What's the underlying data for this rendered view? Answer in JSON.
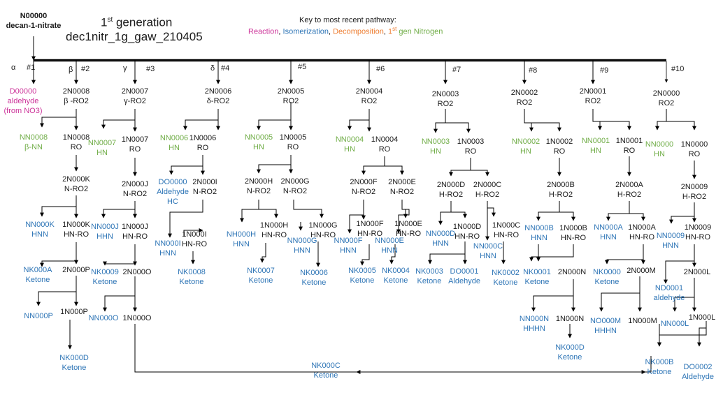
{
  "root": {
    "code": "N00000",
    "name": "decan-1-nitrate"
  },
  "title": {
    "prefix": "1",
    "sup": "st",
    "line1_rest": " generation",
    "line2": "dec1nitr_1g_gaw_210405"
  },
  "key": {
    "heading": "Key to most recent pathway:",
    "reaction": "Reaction",
    "isomerization": "Isomerization",
    "decomposition": "Decomposition",
    "nitrogen_prefix": "1",
    "nitrogen_sup": "st",
    "nitrogen_rest": " gen Nitrogen",
    "sep": ", ",
    "colors": {
      "reaction": "#cc3399",
      "isomerization": "#2e75b6",
      "decomposition": "#ed7d31",
      "nitrogen": "#70ad47"
    }
  },
  "positions": {
    "alpha": "α",
    "beta": "β",
    "gamma": "γ",
    "delta": "δ",
    "n1": "#1",
    "n2": "#2",
    "n3": "#3",
    "n4": "#4",
    "n5": "#5",
    "n6": "#6",
    "n7": "#7",
    "n8": "#8",
    "n9": "#9",
    "n10": "#10"
  },
  "c1": {
    "l1": "D00000",
    "l2": "aldehyde",
    "l3": "(from NO3)"
  },
  "c2": {
    "ro2": [
      "2N0008",
      "β -RO2"
    ],
    "nn": [
      "NN0008",
      "β-NN"
    ],
    "ro": [
      "1N0008",
      "RO"
    ],
    "nro2": [
      "2N000K",
      "N-RO2"
    ],
    "hnn": [
      "NN000K",
      "HNN"
    ],
    "hnro": [
      "1N000K",
      "HN-RO"
    ],
    "ket": [
      "NK000A",
      "Ketone"
    ],
    "p2": "2N000P",
    "nnp": "NN000P",
    "p1": "1N000P",
    "ket2": [
      "NK000D",
      "Ketone"
    ]
  },
  "c3": {
    "ro2": [
      "2N0007",
      "γ-RO2"
    ],
    "nn": [
      "NN0007",
      "HN"
    ],
    "ro": [
      "1N0007",
      "RO"
    ],
    "nro2": [
      "2N000J",
      "N-RO2"
    ],
    "hnn": [
      "NN000J",
      "HHN"
    ],
    "hnro": [
      "1N000J",
      "HN-RO"
    ],
    "ket": [
      "NK0009",
      "Ketone"
    ],
    "o2": "2N000O",
    "nno": "NN000O",
    "o1": "1N000O"
  },
  "c4": {
    "ro2": [
      "2N0006",
      "δ-RO2"
    ],
    "nn": [
      "NN0006",
      "HN"
    ],
    "ro": [
      "1N0006",
      "RO"
    ],
    "ald": [
      "DO0000",
      "Aldehyde",
      "HC"
    ],
    "nro2": [
      "2N000I",
      "N-RO2"
    ],
    "hnn": [
      "NN000I",
      "HNN"
    ],
    "hnro": [
      "1N000I",
      "HN-RO"
    ],
    "ket": [
      "NK0008",
      "Ketone"
    ]
  },
  "c5": {
    "ro2": [
      "2N0005",
      "RO2"
    ],
    "nn": [
      "NN0005",
      "HN"
    ],
    "ro": [
      "1N0005",
      "RO"
    ],
    "h2": [
      "2N000H",
      "N-RO2"
    ],
    "g2": [
      "2N000G",
      "N-RO2"
    ],
    "hhnn": [
      "NH000H",
      "HNN"
    ],
    "h1": [
      "1N000H",
      "HN-RO"
    ],
    "ket7": [
      "NK0007",
      "Ketone"
    ],
    "ghnn": [
      "NN000G",
      "HNN"
    ],
    "g1": [
      "1N000G",
      "HN-RO"
    ],
    "ket6": [
      "NK0006",
      "Ketone"
    ]
  },
  "c6": {
    "ro2": [
      "2N0004",
      "RO2"
    ],
    "nn": [
      "NN0004",
      "HN"
    ],
    "ro": [
      "1N0004",
      "RO"
    ],
    "f2": [
      "2N000F",
      "N-RO2"
    ],
    "e2": [
      "2N000E",
      "N-RO2"
    ],
    "f1": [
      "1N000F",
      "HN-RO"
    ],
    "fnn": [
      "NN000F",
      "HNN"
    ],
    "e1": [
      "1N000E",
      "HN-RO"
    ],
    "enn": [
      "NN000E",
      "HNN"
    ],
    "ket5": [
      "NK0005",
      "Ketone"
    ],
    "ket4": [
      "NK0004",
      "Ketone"
    ]
  },
  "c7": {
    "ro2": [
      "2N0003",
      "RO2"
    ],
    "nn": [
      "NN0003",
      "HN"
    ],
    "ro": [
      "1N0003",
      "RO"
    ],
    "d2": [
      "2N000D",
      "H-RO2"
    ],
    "c2": [
      "2N000C",
      "H-RO2"
    ],
    "dnn": [
      "NN000D",
      "HNN"
    ],
    "d1": [
      "1N000D",
      "HN-RO"
    ],
    "c1": [
      "1N000C",
      "HN-RO"
    ],
    "cnn": [
      "NN000C",
      "HNN"
    ],
    "ket3": [
      "NK0003",
      "Ketone"
    ],
    "ald": [
      "DO0001",
      "Aldehyde"
    ],
    "ket2": [
      "NK0002",
      "Ketone"
    ]
  },
  "c8": {
    "ro2": [
      "2N0002",
      "RO2"
    ],
    "nn": [
      "NN0002",
      "HN"
    ],
    "ro": [
      "1N0002",
      "RO"
    ],
    "b2": [
      "2N000B",
      "H-RO2"
    ],
    "bnn": [
      "NN000B",
      "HNN"
    ],
    "b1": [
      "1N000B",
      "HN-RO"
    ],
    "ket1": [
      "NK0001",
      "Ketone"
    ],
    "n2": "2N000N",
    "nnn": [
      "NN000N",
      "HHHN"
    ],
    "n1": "1N000N",
    "ketd": [
      "NK000D",
      "Ketone"
    ]
  },
  "c9": {
    "ro2": [
      "2N0001",
      "RO2"
    ],
    "nn": [
      "NN0001",
      "HN"
    ],
    "ro": [
      "1N0001",
      "RO"
    ],
    "a2": [
      "2N000A",
      "H-RO2"
    ],
    "ann": [
      "NN000A",
      "HNN"
    ],
    "a1": [
      "1N000A",
      "HN-RO"
    ],
    "ket0": [
      "NK0000",
      "Ketone"
    ],
    "m2": "2N000M",
    "mnn": [
      "NO000M",
      "HHHN"
    ],
    "m1": "1N000M",
    "ketb": [
      "NK000B",
      "Ketone"
    ]
  },
  "c10": {
    "ro2": [
      "2N0000",
      "RO2"
    ],
    "nn": [
      "NN0000",
      "HN"
    ],
    "ro": [
      "1N0000",
      "RO"
    ],
    "n9": [
      "2N0009",
      "H-RO2"
    ],
    "nn9": [
      "NN0009",
      "HNN"
    ],
    "h9": [
      "1N0009",
      "HN-RO"
    ],
    "ald1": [
      "ND0001",
      "aldehyde"
    ],
    "l2": "2N000L",
    "lnn": "NN000L",
    "l1": "1N000L",
    "ald2": [
      "DO0002",
      "Aldehyde"
    ]
  },
  "bottom": {
    "ketc": [
      "NK000C",
      "Ketone"
    ]
  }
}
